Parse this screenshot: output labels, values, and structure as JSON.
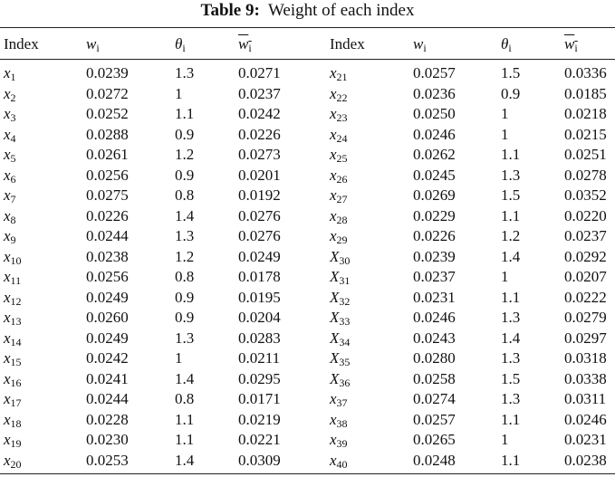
{
  "caption": {
    "label": "Table 9:",
    "title": "Weight of each index"
  },
  "table": {
    "header": [
      "Index",
      {
        "var": "w",
        "sub": "i"
      },
      {
        "var": "θ",
        "sub": "i"
      },
      {
        "var": "w",
        "sub": "i",
        "overline": true
      },
      "Index",
      {
        "var": "w",
        "sub": "i"
      },
      {
        "var": "θ",
        "sub": "i"
      },
      {
        "var": "w",
        "sub": "i",
        "overline": true
      }
    ],
    "rows": [
      [
        {
          "var": "x",
          "sub": "1"
        },
        "0.0239",
        "1.3",
        "0.0271",
        {
          "var": "x",
          "sub": "21"
        },
        "0.0257",
        "1.5",
        "0.0336"
      ],
      [
        {
          "var": "x",
          "sub": "2"
        },
        "0.0272",
        "1",
        "0.0237",
        {
          "var": "x",
          "sub": "22"
        },
        "0.0236",
        "0.9",
        "0.0185"
      ],
      [
        {
          "var": "x",
          "sub": "3"
        },
        "0.0252",
        "1.1",
        "0.0242",
        {
          "var": "x",
          "sub": "23"
        },
        "0.0250",
        "1",
        "0.0218"
      ],
      [
        {
          "var": "x",
          "sub": "4"
        },
        "0.0288",
        "0.9",
        "0.0226",
        {
          "var": "x",
          "sub": "24"
        },
        "0.0246",
        "1",
        "0.0215"
      ],
      [
        {
          "var": "x",
          "sub": "5"
        },
        "0.0261",
        "1.2",
        "0.0273",
        {
          "var": "x",
          "sub": "25"
        },
        "0.0262",
        "1.1",
        "0.0251"
      ],
      [
        {
          "var": "x",
          "sub": "6"
        },
        "0.0256",
        "0.9",
        "0.0201",
        {
          "var": "x",
          "sub": "26"
        },
        "0.0245",
        "1.3",
        "0.0278"
      ],
      [
        {
          "var": "x",
          "sub": "7"
        },
        "0.0275",
        "0.8",
        "0.0192",
        {
          "var": "x",
          "sub": "27"
        },
        "0.0269",
        "1.5",
        "0.0352"
      ],
      [
        {
          "var": "x",
          "sub": "8"
        },
        "0.0226",
        "1.4",
        "0.0276",
        {
          "var": "x",
          "sub": "28"
        },
        "0.0229",
        "1.1",
        "0.0220"
      ],
      [
        {
          "var": "x",
          "sub": "9"
        },
        "0.0244",
        "1.3",
        "0.0276",
        {
          "var": "x",
          "sub": "29"
        },
        "0.0226",
        "1.2",
        "0.0237"
      ],
      [
        {
          "var": "x",
          "sub": "10"
        },
        "0.0238",
        "1.2",
        "0.0249",
        {
          "var": "X",
          "sub": "30"
        },
        "0.0239",
        "1.4",
        "0.0292"
      ],
      [
        {
          "var": "x",
          "sub": "11"
        },
        "0.0256",
        "0.8",
        "0.0178",
        {
          "var": "X",
          "sub": "31"
        },
        "0.0237",
        "1",
        "0.0207"
      ],
      [
        {
          "var": "x",
          "sub": "12"
        },
        "0.0249",
        "0.9",
        "0.0195",
        {
          "var": "X",
          "sub": "32"
        },
        "0.0231",
        "1.1",
        "0.0222"
      ],
      [
        {
          "var": "x",
          "sub": "13"
        },
        "0.0260",
        "0.9",
        "0.0204",
        {
          "var": "X",
          "sub": "33"
        },
        "0.0246",
        "1.3",
        "0.0279"
      ],
      [
        {
          "var": "x",
          "sub": "14"
        },
        "0.0249",
        "1.3",
        "0.0283",
        {
          "var": "X",
          "sub": "34"
        },
        "0.0243",
        "1.4",
        "0.0297"
      ],
      [
        {
          "var": "x",
          "sub": "15"
        },
        "0.0242",
        "1",
        "0.0211",
        {
          "var": "X",
          "sub": "35"
        },
        "0.0280",
        "1.3",
        "0.0318"
      ],
      [
        {
          "var": "x",
          "sub": "16"
        },
        "0.0241",
        "1.4",
        "0.0295",
        {
          "var": "X",
          "sub": "36"
        },
        "0.0258",
        "1.5",
        "0.0338"
      ],
      [
        {
          "var": "x",
          "sub": "17"
        },
        "0.0244",
        "0.8",
        "0.0171",
        {
          "var": "x",
          "sub": "37"
        },
        "0.0274",
        "1.3",
        "0.0311"
      ],
      [
        {
          "var": "x",
          "sub": "18"
        },
        "0.0228",
        "1.1",
        "0.0219",
        {
          "var": "x",
          "sub": "38"
        },
        "0.0257",
        "1.1",
        "0.0246"
      ],
      [
        {
          "var": "x",
          "sub": "19"
        },
        "0.0230",
        "1.1",
        "0.0221",
        {
          "var": "x",
          "sub": "39"
        },
        "0.0265",
        "1",
        "0.0231"
      ],
      [
        {
          "var": "x",
          "sub": "20"
        },
        "0.0253",
        "1.4",
        "0.0309",
        {
          "var": "x",
          "sub": "40"
        },
        "0.0248",
        "1.1",
        "0.0238"
      ]
    ]
  }
}
